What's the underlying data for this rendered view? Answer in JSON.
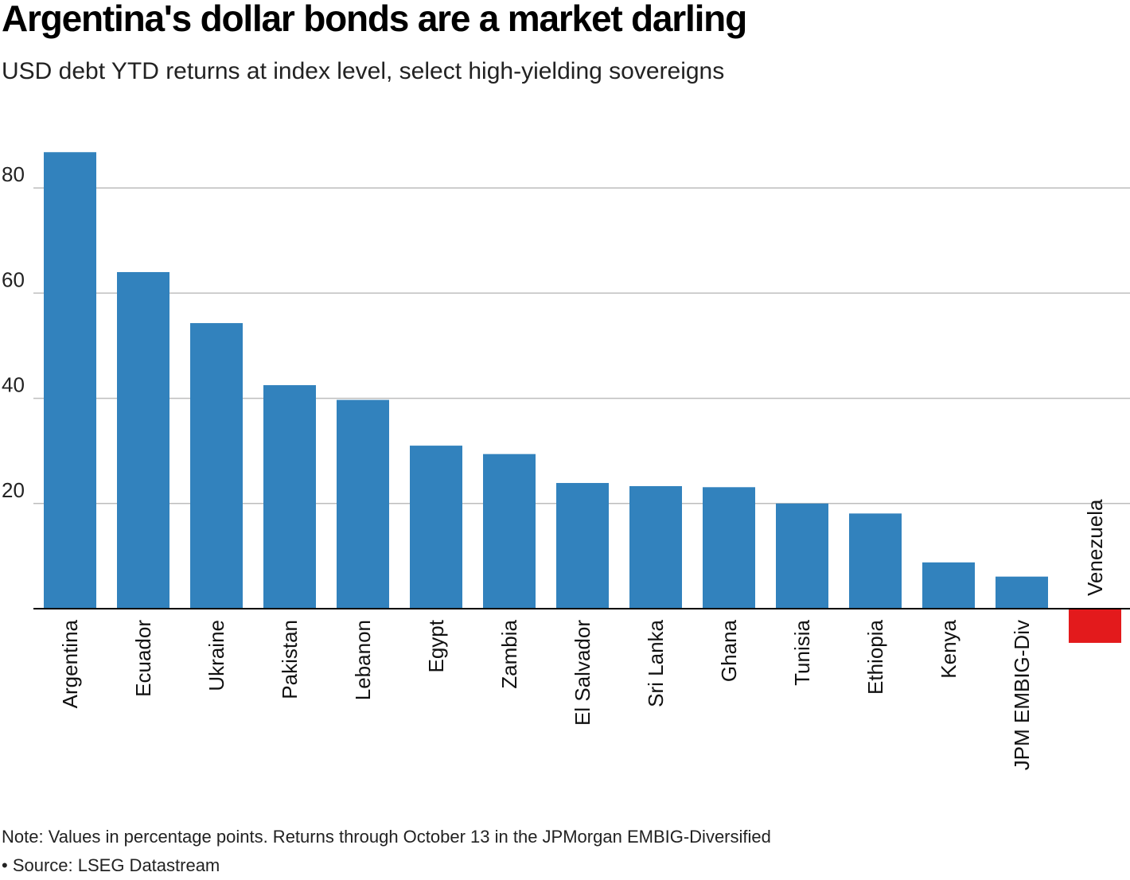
{
  "title": "Argentina's dollar bonds are a market darling",
  "subtitle": "USD debt YTD returns at index level, select high-yielding sovereigns",
  "note": "Note: Values in percentage points. Returns through October 13 in the JPMorgan EMBIG-Diversified",
  "source": "• Source: LSEG Datastream",
  "colors": {
    "positive": "#3282BD",
    "negative": "#E31A1C",
    "grid": "#BDBDBD",
    "axis": "#000000"
  },
  "chart_data": {
    "type": "bar",
    "title": "Argentina's dollar bonds are a market darling",
    "subtitle": "USD debt YTD returns at index level, select high-yielding sovereigns",
    "categories": [
      "Argentina",
      "Ecuador",
      "Ukraine",
      "Pakistan",
      "Lebanon",
      "Egypt",
      "Zambia",
      "El Salvador",
      "Sri Lanka",
      "Ghana",
      "Tunisia",
      "Ethiopia",
      "Kenya",
      "JPM EMBIG-Div",
      "Venezuela"
    ],
    "values": [
      86.8,
      64.0,
      54.3,
      42.5,
      39.7,
      31.0,
      29.4,
      23.9,
      23.3,
      23.1,
      20.0,
      18.1,
      8.8,
      6.1,
      -6.5
    ],
    "yticks": [
      20,
      40,
      60,
      80
    ],
    "ylim": [
      -10,
      90
    ],
    "grid": true,
    "xlabel": "",
    "ylabel": ""
  }
}
